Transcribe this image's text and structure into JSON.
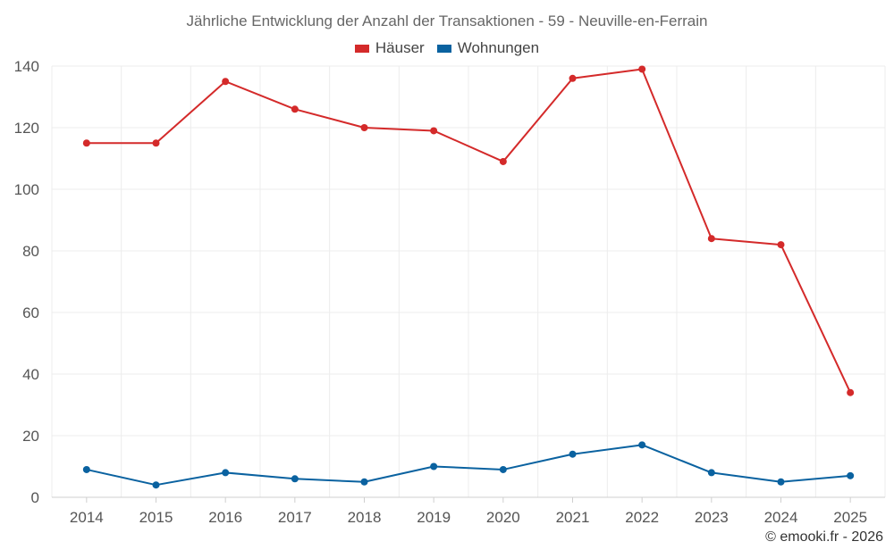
{
  "chart_data": {
    "type": "line",
    "title": "Jährliche Entwicklung der Anzahl der Transaktionen - 59 - Neuville-en-Ferrain",
    "categories": [
      "2014",
      "2015",
      "2016",
      "2017",
      "2018",
      "2019",
      "2020",
      "2021",
      "2022",
      "2023",
      "2024",
      "2025"
    ],
    "series": [
      {
        "name": "Häuser",
        "color": "#d42a2a",
        "values": [
          115,
          115,
          135,
          126,
          120,
          119,
          109,
          136,
          139,
          84,
          82,
          34
        ]
      },
      {
        "name": "Wohnungen",
        "color": "#0a62a0",
        "values": [
          9,
          4,
          8,
          6,
          5,
          10,
          9,
          14,
          17,
          8,
          5,
          7
        ]
      }
    ],
    "ylim": [
      0,
      140
    ],
    "yticks": [
      0,
      20,
      40,
      60,
      80,
      100,
      120,
      140
    ],
    "grid": true,
    "legend_position": "top-center",
    "xlabel": "",
    "ylabel": ""
  },
  "credit": "© emooki.fr - 2026"
}
